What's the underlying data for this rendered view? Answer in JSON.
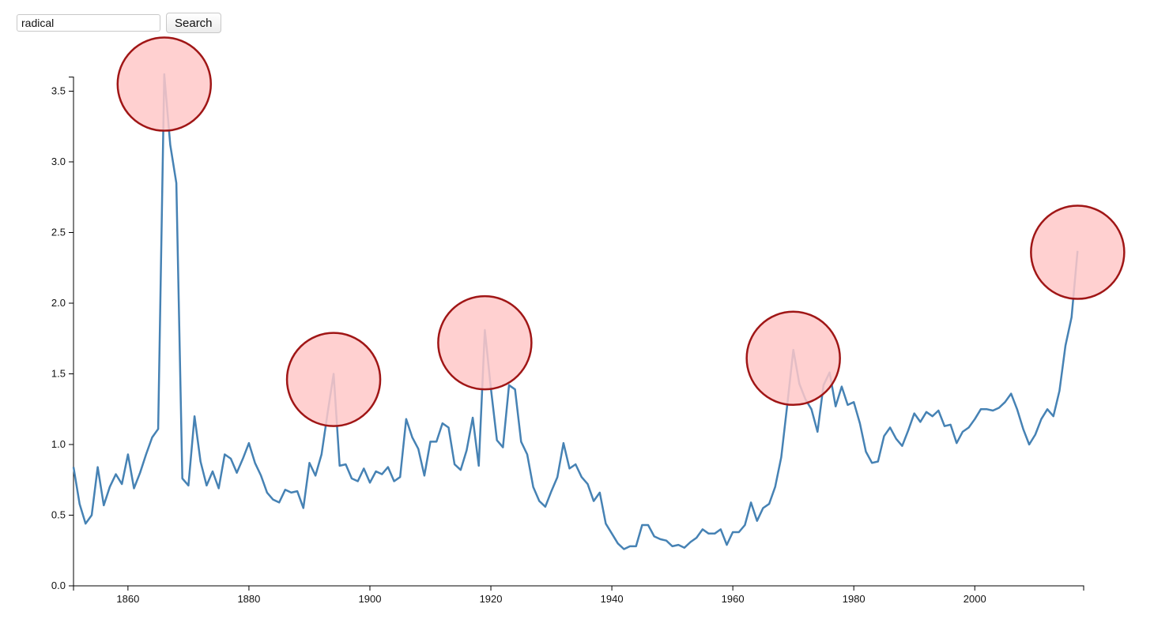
{
  "search": {
    "value": "radical",
    "button_label": "Search"
  },
  "chart_data": {
    "type": "line",
    "title": "",
    "xlabel": "",
    "ylabel": "",
    "xlim": [
      1851,
      2018
    ],
    "ylim": [
      0,
      3.6
    ],
    "x_ticks": [
      1860,
      1880,
      1900,
      1920,
      1940,
      1960,
      1980,
      2000
    ],
    "y_ticks": [
      0.0,
      0.5,
      1.0,
      1.5,
      2.0,
      2.5,
      3.0,
      3.5
    ],
    "grid": false,
    "colors": {
      "line": "#4682b4",
      "highlight_fill": "#ffc8c8",
      "highlight_stroke": "#a01616"
    },
    "series": [
      {
        "x": [
          1851,
          1852,
          1853,
          1854,
          1855,
          1856,
          1857,
          1858,
          1859,
          1860,
          1861,
          1862,
          1863,
          1864,
          1865,
          1866,
          1867,
          1868,
          1869,
          1870,
          1871,
          1872,
          1873,
          1874,
          1875,
          1876,
          1877,
          1878,
          1879,
          1880,
          1881,
          1882,
          1883,
          1884,
          1885,
          1886,
          1887,
          1888,
          1889,
          1890,
          1891,
          1892,
          1893,
          1894,
          1895,
          1896,
          1897,
          1898,
          1899,
          1900,
          1901,
          1902,
          1903,
          1904,
          1905,
          1906,
          1907,
          1908,
          1909,
          1910,
          1911,
          1912,
          1913,
          1914,
          1915,
          1916,
          1917,
          1918,
          1919,
          1920,
          1921,
          1922,
          1923,
          1924,
          1925,
          1926,
          1927,
          1928,
          1929,
          1930,
          1931,
          1932,
          1933,
          1934,
          1935,
          1936,
          1937,
          1938,
          1939,
          1940,
          1941,
          1942,
          1943,
          1944,
          1945,
          1946,
          1947,
          1948,
          1949,
          1950,
          1951,
          1952,
          1953,
          1954,
          1955,
          1956,
          1957,
          1958,
          1959,
          1960,
          1961,
          1962,
          1963,
          1964,
          1965,
          1966,
          1967,
          1968,
          1969,
          1970,
          1971,
          1972,
          1973,
          1974,
          1975,
          1976,
          1977,
          1978,
          1979,
          1980,
          1981,
          1982,
          1983,
          1984,
          1985,
          1986,
          1987,
          1988,
          1989,
          1990,
          1991,
          1992,
          1993,
          1994,
          1995,
          1996,
          1997,
          1998,
          1999,
          2000,
          2001,
          2002,
          2003,
          2004,
          2005,
          2006,
          2007,
          2008,
          2009,
          2010,
          2011,
          2012,
          2013,
          2014,
          2015,
          2016,
          2017
        ],
        "values": [
          0.84,
          0.58,
          0.44,
          0.5,
          0.84,
          0.57,
          0.7,
          0.79,
          0.72,
          0.93,
          0.69,
          0.8,
          0.93,
          1.05,
          1.11,
          3.62,
          3.12,
          2.85,
          0.76,
          0.71,
          1.2,
          0.88,
          0.71,
          0.81,
          0.69,
          0.93,
          0.9,
          0.8,
          0.9,
          1.01,
          0.87,
          0.78,
          0.66,
          0.61,
          0.59,
          0.68,
          0.66,
          0.67,
          0.55,
          0.87,
          0.78,
          0.93,
          1.22,
          1.5,
          0.85,
          0.86,
          0.76,
          0.74,
          0.83,
          0.73,
          0.81,
          0.79,
          0.84,
          0.74,
          0.77,
          1.18,
          1.05,
          0.97,
          0.78,
          1.02,
          1.02,
          1.15,
          1.12,
          0.86,
          0.82,
          0.96,
          1.19,
          0.85,
          1.81,
          1.4,
          1.03,
          0.98,
          1.42,
          1.39,
          1.02,
          0.93,
          0.7,
          0.6,
          0.56,
          0.67,
          0.77,
          1.01,
          0.83,
          0.86,
          0.77,
          0.72,
          0.6,
          0.66,
          0.44,
          0.37,
          0.3,
          0.26,
          0.28,
          0.28,
          0.43,
          0.43,
          0.35,
          0.33,
          0.32,
          0.28,
          0.29,
          0.27,
          0.31,
          0.34,
          0.4,
          0.37,
          0.37,
          0.4,
          0.29,
          0.38,
          0.38,
          0.43,
          0.59,
          0.46,
          0.55,
          0.58,
          0.7,
          0.91,
          1.28,
          1.67,
          1.43,
          1.32,
          1.25,
          1.09,
          1.42,
          1.51,
          1.27,
          1.41,
          1.28,
          1.3,
          1.15,
          0.95,
          0.87,
          0.88,
          1.06,
          1.12,
          1.04,
          0.99,
          1.1,
          1.22,
          1.16,
          1.23,
          1.2,
          1.24,
          1.13,
          1.14,
          1.01,
          1.09,
          1.12,
          1.18,
          1.25,
          1.25,
          1.24,
          1.26,
          1.3,
          1.36,
          1.25,
          1.11,
          1.0,
          1.07,
          1.18,
          1.25,
          1.2,
          1.38,
          1.7,
          1.9,
          2.37
        ]
      }
    ],
    "highlights": [
      {
        "x": 1866,
        "y": 3.55
      },
      {
        "x": 1894,
        "y": 1.46
      },
      {
        "x": 1919,
        "y": 1.72
      },
      {
        "x": 1970,
        "y": 1.61
      },
      {
        "x": 2017,
        "y": 2.36
      }
    ]
  }
}
